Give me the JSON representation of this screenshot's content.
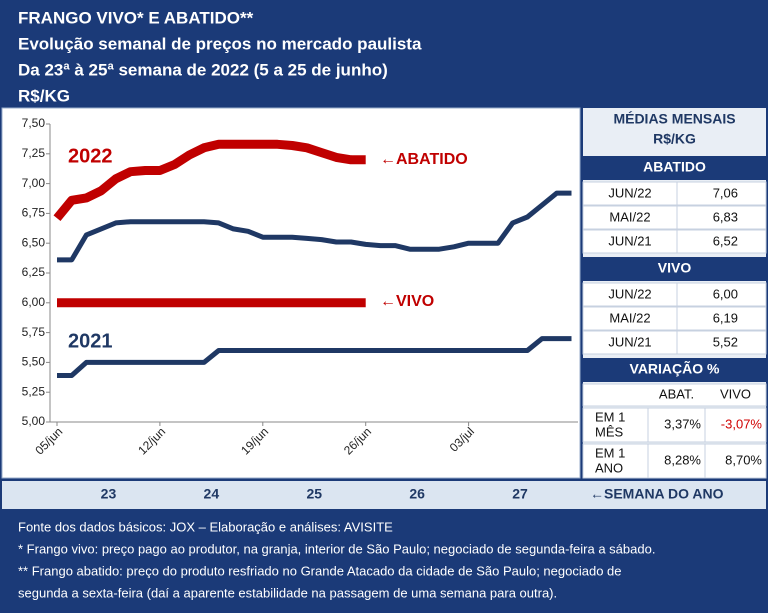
{
  "header": {
    "lines": [
      "FRANGO VIVO* E ABATIDO**",
      "Evolução semanal de preços no mercado paulista",
      "Da 23ª à 25ª semana de 2022 (5 a 25 de junho)",
      "R$/KG"
    ]
  },
  "chart_data": {
    "type": "line",
    "categories": [
      "05/jun",
      null,
      null,
      null,
      null,
      null,
      null,
      "12/jun",
      null,
      null,
      null,
      null,
      null,
      null,
      "19/jun",
      null,
      null,
      null,
      null,
      null,
      null,
      "26/jun",
      null,
      null,
      null,
      null,
      null,
      null,
      "03/jul",
      null,
      null,
      null,
      null,
      null,
      null,
      null
    ],
    "series": [
      {
        "color": "#1f3864",
        "width": 5,
        "values": [
          6.36,
          6.36,
          6.57,
          6.62,
          6.67,
          6.68,
          6.68,
          6.68,
          6.68,
          6.68,
          6.68,
          6.67,
          6.62,
          6.6,
          6.55,
          6.55,
          6.55,
          6.54,
          6.53,
          6.51,
          6.51,
          6.49,
          6.48,
          6.48,
          6.45,
          6.45,
          6.45,
          6.47,
          6.5,
          6.5,
          6.5,
          6.67,
          6.72,
          6.82,
          6.92,
          6.92
        ]
      },
      {
        "color": "#c00000",
        "width": 9,
        "values": [
          6.71,
          6.86,
          6.88,
          6.94,
          7.04,
          7.1,
          7.11,
          7.11,
          7.16,
          7.24,
          7.3,
          7.33,
          7.33,
          7.33,
          7.33,
          7.33,
          7.32,
          7.3,
          7.26,
          7.22,
          7.2,
          7.2,
          null,
          null,
          null,
          null,
          null,
          null,
          null,
          null,
          null,
          null,
          null,
          null,
          null,
          null
        ]
      },
      {
        "color": "#c00000",
        "width": 9,
        "values": [
          6.0,
          6.0,
          6.0,
          6.0,
          6.0,
          6.0,
          6.0,
          6.0,
          6.0,
          6.0,
          6.0,
          6.0,
          6.0,
          6.0,
          6.0,
          6.0,
          6.0,
          6.0,
          6.0,
          6.0,
          6.0,
          6.0,
          null,
          null,
          null,
          null,
          null,
          null,
          null,
          null,
          null,
          null,
          null,
          null,
          null,
          null
        ]
      },
      {
        "color": "#1f3864",
        "width": 5,
        "values": [
          5.39,
          5.39,
          5.5,
          5.5,
          5.5,
          5.5,
          5.5,
          5.5,
          5.5,
          5.5,
          5.5,
          5.6,
          5.6,
          5.6,
          5.6,
          5.6,
          5.6,
          5.6,
          5.6,
          5.6,
          5.6,
          5.6,
          5.6,
          5.6,
          5.6,
          5.6,
          5.6,
          5.6,
          5.6,
          5.6,
          5.6,
          5.6,
          5.6,
          5.7,
          5.7,
          5.7
        ]
      }
    ],
    "ylim": [
      5.0,
      7.5
    ],
    "yticks": [
      {
        "value": 5.0,
        "label": "5,00"
      },
      {
        "value": 5.25,
        "label": "5,25"
      },
      {
        "value": 5.5,
        "label": "5,50"
      },
      {
        "value": 5.75,
        "label": "5,75"
      },
      {
        "value": 6.0,
        "label": "6,00"
      },
      {
        "value": 6.25,
        "label": "6,25"
      },
      {
        "value": 6.5,
        "label": "6,50"
      },
      {
        "value": 6.75,
        "label": "6,75"
      },
      {
        "value": 7.0,
        "label": "7,00"
      },
      {
        "value": 7.25,
        "label": "7,25"
      },
      {
        "value": 7.5,
        "label": "7,50"
      }
    ],
    "grid": false,
    "annotations": [
      {
        "text": "2022",
        "color": "#c00000"
      },
      {
        "text": "2021",
        "color": "#1f3864"
      },
      {
        "text": "←ABATIDO",
        "color": "#c00000"
      },
      {
        "text": "←VIVO",
        "color": "#c00000"
      }
    ]
  },
  "weeks": {
    "labels": [
      "23",
      "24",
      "25",
      "26",
      "27"
    ],
    "caption": "←SEMANA DO ANO"
  },
  "table": {
    "title": "MÉDIAS MENSAIS",
    "unit": "R$/KG",
    "sections": [
      {
        "title": "ABATIDO",
        "rows": [
          [
            "JUN/22",
            "7,06"
          ],
          [
            "MAI/22",
            "6,83"
          ],
          [
            "JUN/21",
            "6,52"
          ]
        ]
      },
      {
        "title": "VIVO",
        "rows": [
          [
            "JUN/22",
            "6,00"
          ],
          [
            "MAI/22",
            "6,19"
          ],
          [
            "JUN/21",
            "5,52"
          ]
        ]
      }
    ],
    "variation": {
      "title": "VARIAÇÃO %",
      "columns": [
        "ABAT.",
        "VIVO"
      ],
      "rows": [
        {
          "label_lines": [
            "EM 1",
            "MÊS"
          ],
          "abat": "3,37%",
          "vivo": "-3,07%"
        },
        {
          "label_lines": [
            "EM 1",
            "ANO"
          ],
          "abat": "8,28%",
          "vivo": "8,70%"
        }
      ]
    }
  },
  "footer": {
    "lines": [
      "Fonte dos dados básicos: JOX – Elaboração e análises: AVISITE",
      "*   Frango vivo: preço pago ao produtor, na granja, interior de São Paulo; negociado de segunda-feira a sábado.",
      "** Frango abatido: preço do produto resfriado no Grande Atacado da cidade de São Paulo; negociado de",
      "segunda a sexta-feira (daí a aparente estabilidade na passagem de uma semana para outra)."
    ]
  }
}
